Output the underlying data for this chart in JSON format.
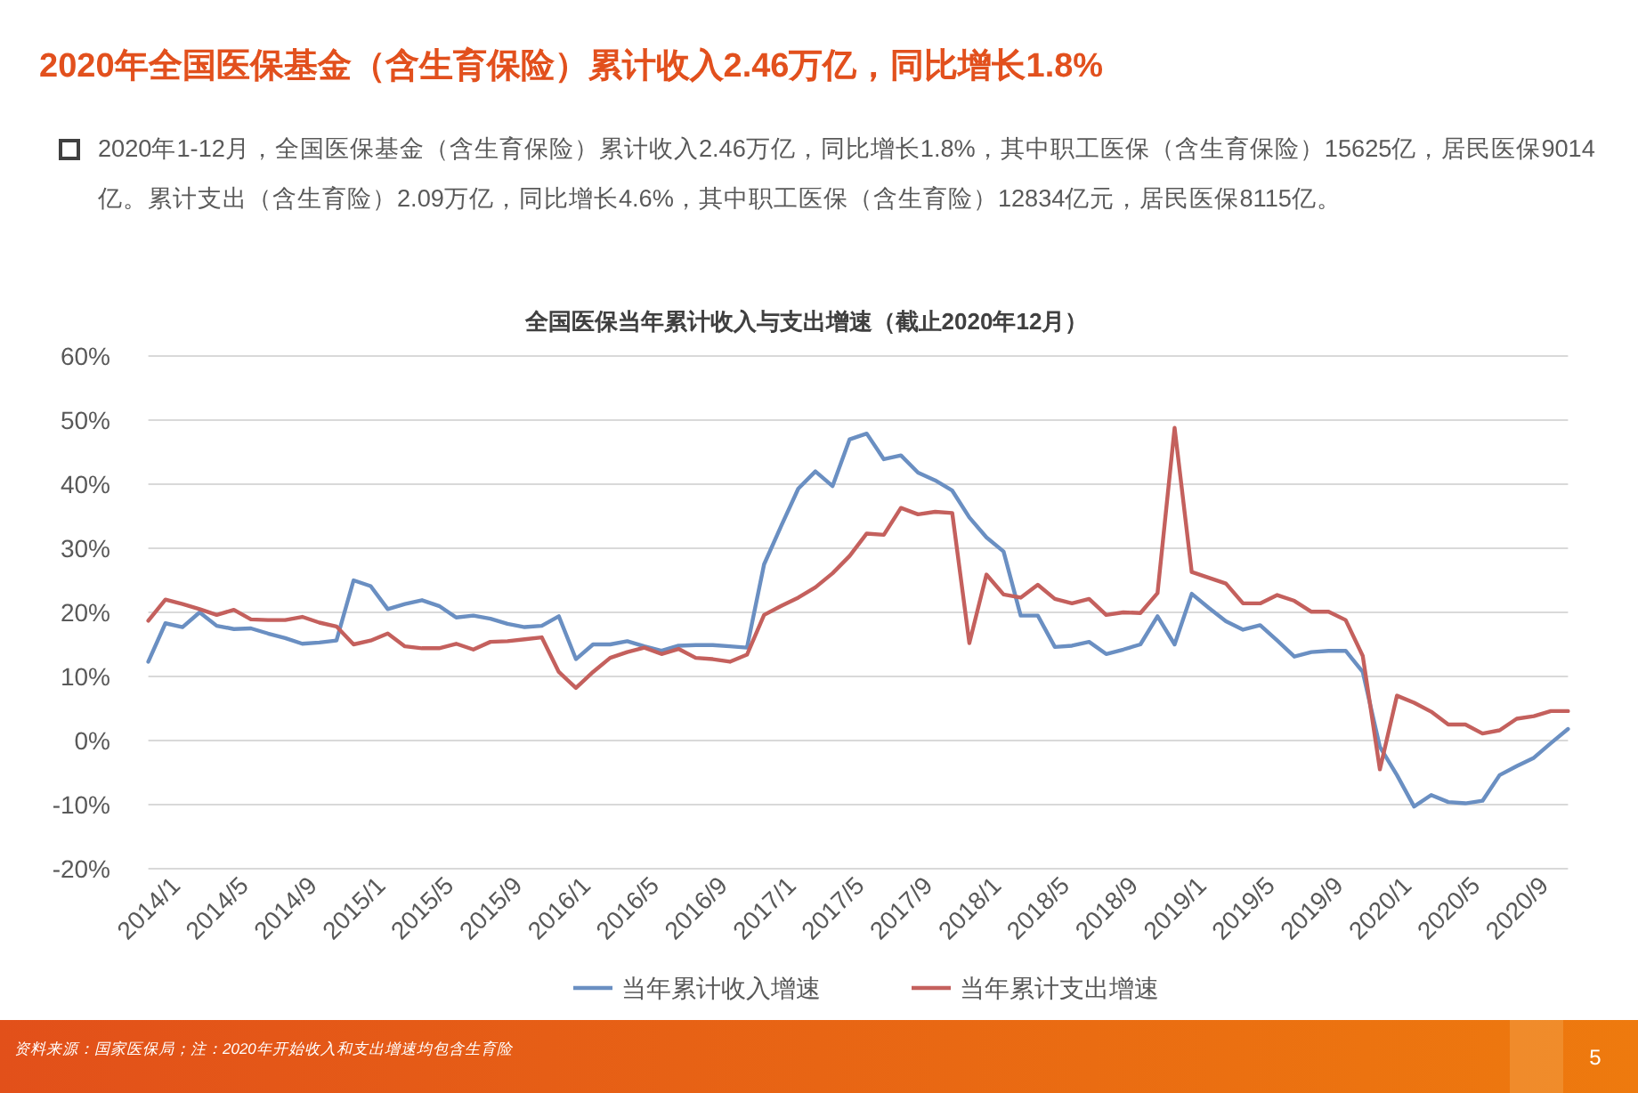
{
  "chart_data": {
    "type": "line",
    "title": "2020年全国医保基金（含生育保险）累计收入2.46万亿，同比增长1.8%",
    "subtitle": "全国医保当年累计收入与支出增速（截止2020年12月）",
    "annotations": [
      "2020年1-12月，全国医保基金（含生育保险）累计收入2.46万亿，同比增长1.8%，其中职工医保（含生育保险）15625亿，居民医保9014亿。累计支出（含生育险）2.09万亿，同比增长4.6%，其中职工医保（含生育险）12834亿元，居民医保8115亿。",
      "资料来源：国家医保局；注：2020年开始收入和支出增速均包含生育险",
      "5"
    ],
    "categories": [
      "2014/1",
      null,
      null,
      null,
      "2014/5",
      null,
      null,
      null,
      "2014/9",
      null,
      null,
      null,
      "2015/1",
      null,
      null,
      null,
      "2015/5",
      null,
      null,
      null,
      "2015/9",
      null,
      null,
      null,
      "2016/1",
      null,
      null,
      null,
      "2016/5",
      null,
      null,
      null,
      "2016/9",
      null,
      null,
      null,
      "2017/1",
      null,
      null,
      null,
      "2017/5",
      null,
      null,
      null,
      "2017/9",
      null,
      null,
      null,
      "2018/1",
      null,
      null,
      null,
      "2018/5",
      null,
      null,
      null,
      "2018/9",
      null,
      null,
      null,
      "2019/1",
      null,
      null,
      null,
      "2019/5",
      null,
      null,
      null,
      "2019/9",
      null,
      null,
      null,
      "2020/1",
      null,
      null,
      null,
      "2020/5",
      null,
      null,
      null,
      "2020/9",
      null,
      null,
      null
    ],
    "series": [
      {
        "name": "当年累计收入增速",
        "color": "#6a8fc2",
        "values": [
          12.3,
          18.3,
          17.7,
          20,
          17.9,
          17.4,
          17.5,
          16.7,
          16,
          15.1,
          15.3,
          15.6,
          25,
          24.1,
          20.5,
          21.3,
          21.9,
          21,
          19.2,
          19.5,
          19,
          18.2,
          17.7,
          17.9,
          19.4,
          12.7,
          15,
          15,
          15.5,
          14.7,
          14,
          14.8,
          14.9,
          14.9,
          14.7,
          14.5,
          27.5,
          33.5,
          39.3,
          42,
          39.7,
          47,
          47.9,
          43.9,
          44.5,
          41.8,
          40.6,
          39,
          34.8,
          31.7,
          29.5,
          19.5,
          19.5,
          14.6,
          14.8,
          15.4,
          13.5,
          14.2,
          15,
          19.4,
          15,
          22.9,
          20.7,
          18.6,
          17.3,
          18,
          15.6,
          13.1,
          13.8,
          14,
          14,
          10.7,
          -1,
          -5.4,
          -10.3,
          -8.5,
          -9.6,
          -9.8,
          -9.4,
          -5.4,
          -4,
          -2.7,
          -0.4,
          1.8
        ]
      },
      {
        "name": "当年累计支出增速",
        "color": "#c4605d",
        "values": [
          18.7,
          22,
          21.3,
          20.5,
          19.6,
          20.4,
          18.9,
          18.8,
          18.8,
          19.3,
          18.4,
          17.8,
          15,
          15.6,
          16.7,
          14.7,
          14.4,
          14.4,
          15.1,
          14.2,
          15.4,
          15.5,
          15.8,
          16.1,
          10.7,
          8.2,
          10.7,
          12.9,
          13.8,
          14.5,
          13.5,
          14.3,
          12.9,
          12.7,
          12.3,
          13.4,
          19.6,
          21,
          22.3,
          23.9,
          26.1,
          28.8,
          32.3,
          32.1,
          36.3,
          35.3,
          35.7,
          35.5,
          15.2,
          25.9,
          22.8,
          22.3,
          24.3,
          22.1,
          21.4,
          22.1,
          19.6,
          20,
          19.9,
          23,
          48.8,
          26.3,
          25.4,
          24.5,
          21.4,
          21.4,
          22.7,
          21.8,
          20.1,
          20.1,
          18.8,
          13.2,
          -4.5,
          7,
          5.9,
          4.5,
          2.5,
          2.5,
          1.1,
          1.6,
          3.4,
          3.8,
          4.6,
          4.6
        ]
      }
    ],
    "ylim": [
      -20,
      60
    ],
    "yticks": [
      {
        "value": -20,
        "label": "-20%"
      },
      {
        "value": -10,
        "label": "-10%"
      },
      {
        "value": 0,
        "label": "0%"
      },
      {
        "value": 10,
        "label": "10%"
      },
      {
        "value": 20,
        "label": "20%"
      },
      {
        "value": 30,
        "label": "30%"
      },
      {
        "value": 40,
        "label": "40%"
      },
      {
        "value": 50,
        "label": "50%"
      },
      {
        "value": 60,
        "label": "60%"
      }
    ],
    "grid": "y",
    "legend": "bottom"
  }
}
